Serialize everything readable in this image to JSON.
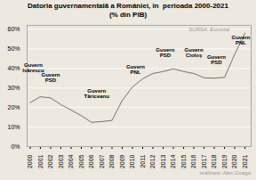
{
  "chart_data": {
    "type": "area",
    "title": "Datoria guvernamentală a României, în  perioada 2000-2021",
    "subtitle": "(% din PIB)",
    "source": "SURSA: Eurostat",
    "footnote": "realizare: Alex Goaga",
    "x": [
      2000,
      2001,
      2002,
      2003,
      2004,
      2005,
      2006,
      2007,
      2008,
      2009,
      2010,
      2011,
      2012,
      2013,
      2014,
      2015,
      2016,
      2017,
      2018,
      2019,
      2020,
      2021
    ],
    "values": [
      22.5,
      25.5,
      24.9,
      21.5,
      18.7,
      15.8,
      12.4,
      12.8,
      13.4,
      23.6,
      30.5,
      34.7,
      37.4,
      38.4,
      39.8,
      38.4,
      37.4,
      35.2,
      35.0,
      35.4,
      47.3,
      58.0
    ],
    "color": "#222222",
    "periods": [
      {
        "name": "Guvern\nIsărescu",
        "start": 2000,
        "end": 2000.9,
        "color": "#b0b0b0",
        "label_x": 2000.3,
        "label_y": 38
      },
      {
        "name": "Guvern\nPSD",
        "start": 2000.9,
        "end": 2004.9,
        "color": "#cc0000",
        "label_x": 2002.0,
        "label_y": 33
      },
      {
        "name": "Guvern\nTăriceanu",
        "start": 2004.9,
        "end": 2008.9,
        "color": "#4488cc",
        "label_x": 2006.5,
        "label_y": 25
      },
      {
        "name": "Guvern\nPNL",
        "start": 2008.9,
        "end": 2012.2,
        "color": "#ffaa00",
        "label_x": 2010.3,
        "label_y": 37
      },
      {
        "name": "Guvern\nPSD",
        "start": 2012.2,
        "end": 2015.2,
        "color": "#cc0000",
        "label_x": 2013.2,
        "label_y": 46
      },
      {
        "name": "Guvern\nCioloș",
        "start": 2015.2,
        "end": 2017.1,
        "color": "#cc0000",
        "label_x": 2016.0,
        "label_y": 46
      },
      {
        "name": "Guvern\nPSD",
        "start": 2017.1,
        "end": 2019.9,
        "color": "#cc0000",
        "label_x": 2018.2,
        "label_y": 42
      },
      {
        "name": "Guvern\nPNL",
        "start": 2019.9,
        "end": 2021.5,
        "color": "#ffaa00",
        "label_x": 2020.6,
        "label_y": 52
      }
    ],
    "xlim": [
      1999.7,
      2021.6
    ],
    "xticks": [
      2000,
      2001,
      2002,
      2003,
      2004,
      2005,
      2006,
      2007,
      2008,
      2009,
      2010,
      2011,
      2012,
      2013,
      2014,
      2015,
      2016,
      2017,
      2018,
      2019,
      2020,
      2021
    ],
    "ylim": [
      0,
      62
    ],
    "yticks": [
      {
        "value": 0,
        "label": "0%"
      },
      {
        "value": 10,
        "label": "10%"
      },
      {
        "value": 20,
        "label": "20%"
      },
      {
        "value": 30,
        "label": "30%"
      },
      {
        "value": 40,
        "label": "40%"
      },
      {
        "value": 50,
        "label": "50%"
      },
      {
        "value": 60,
        "label": "60%"
      }
    ],
    "grid": true,
    "background_color": "#ede8e0"
  }
}
